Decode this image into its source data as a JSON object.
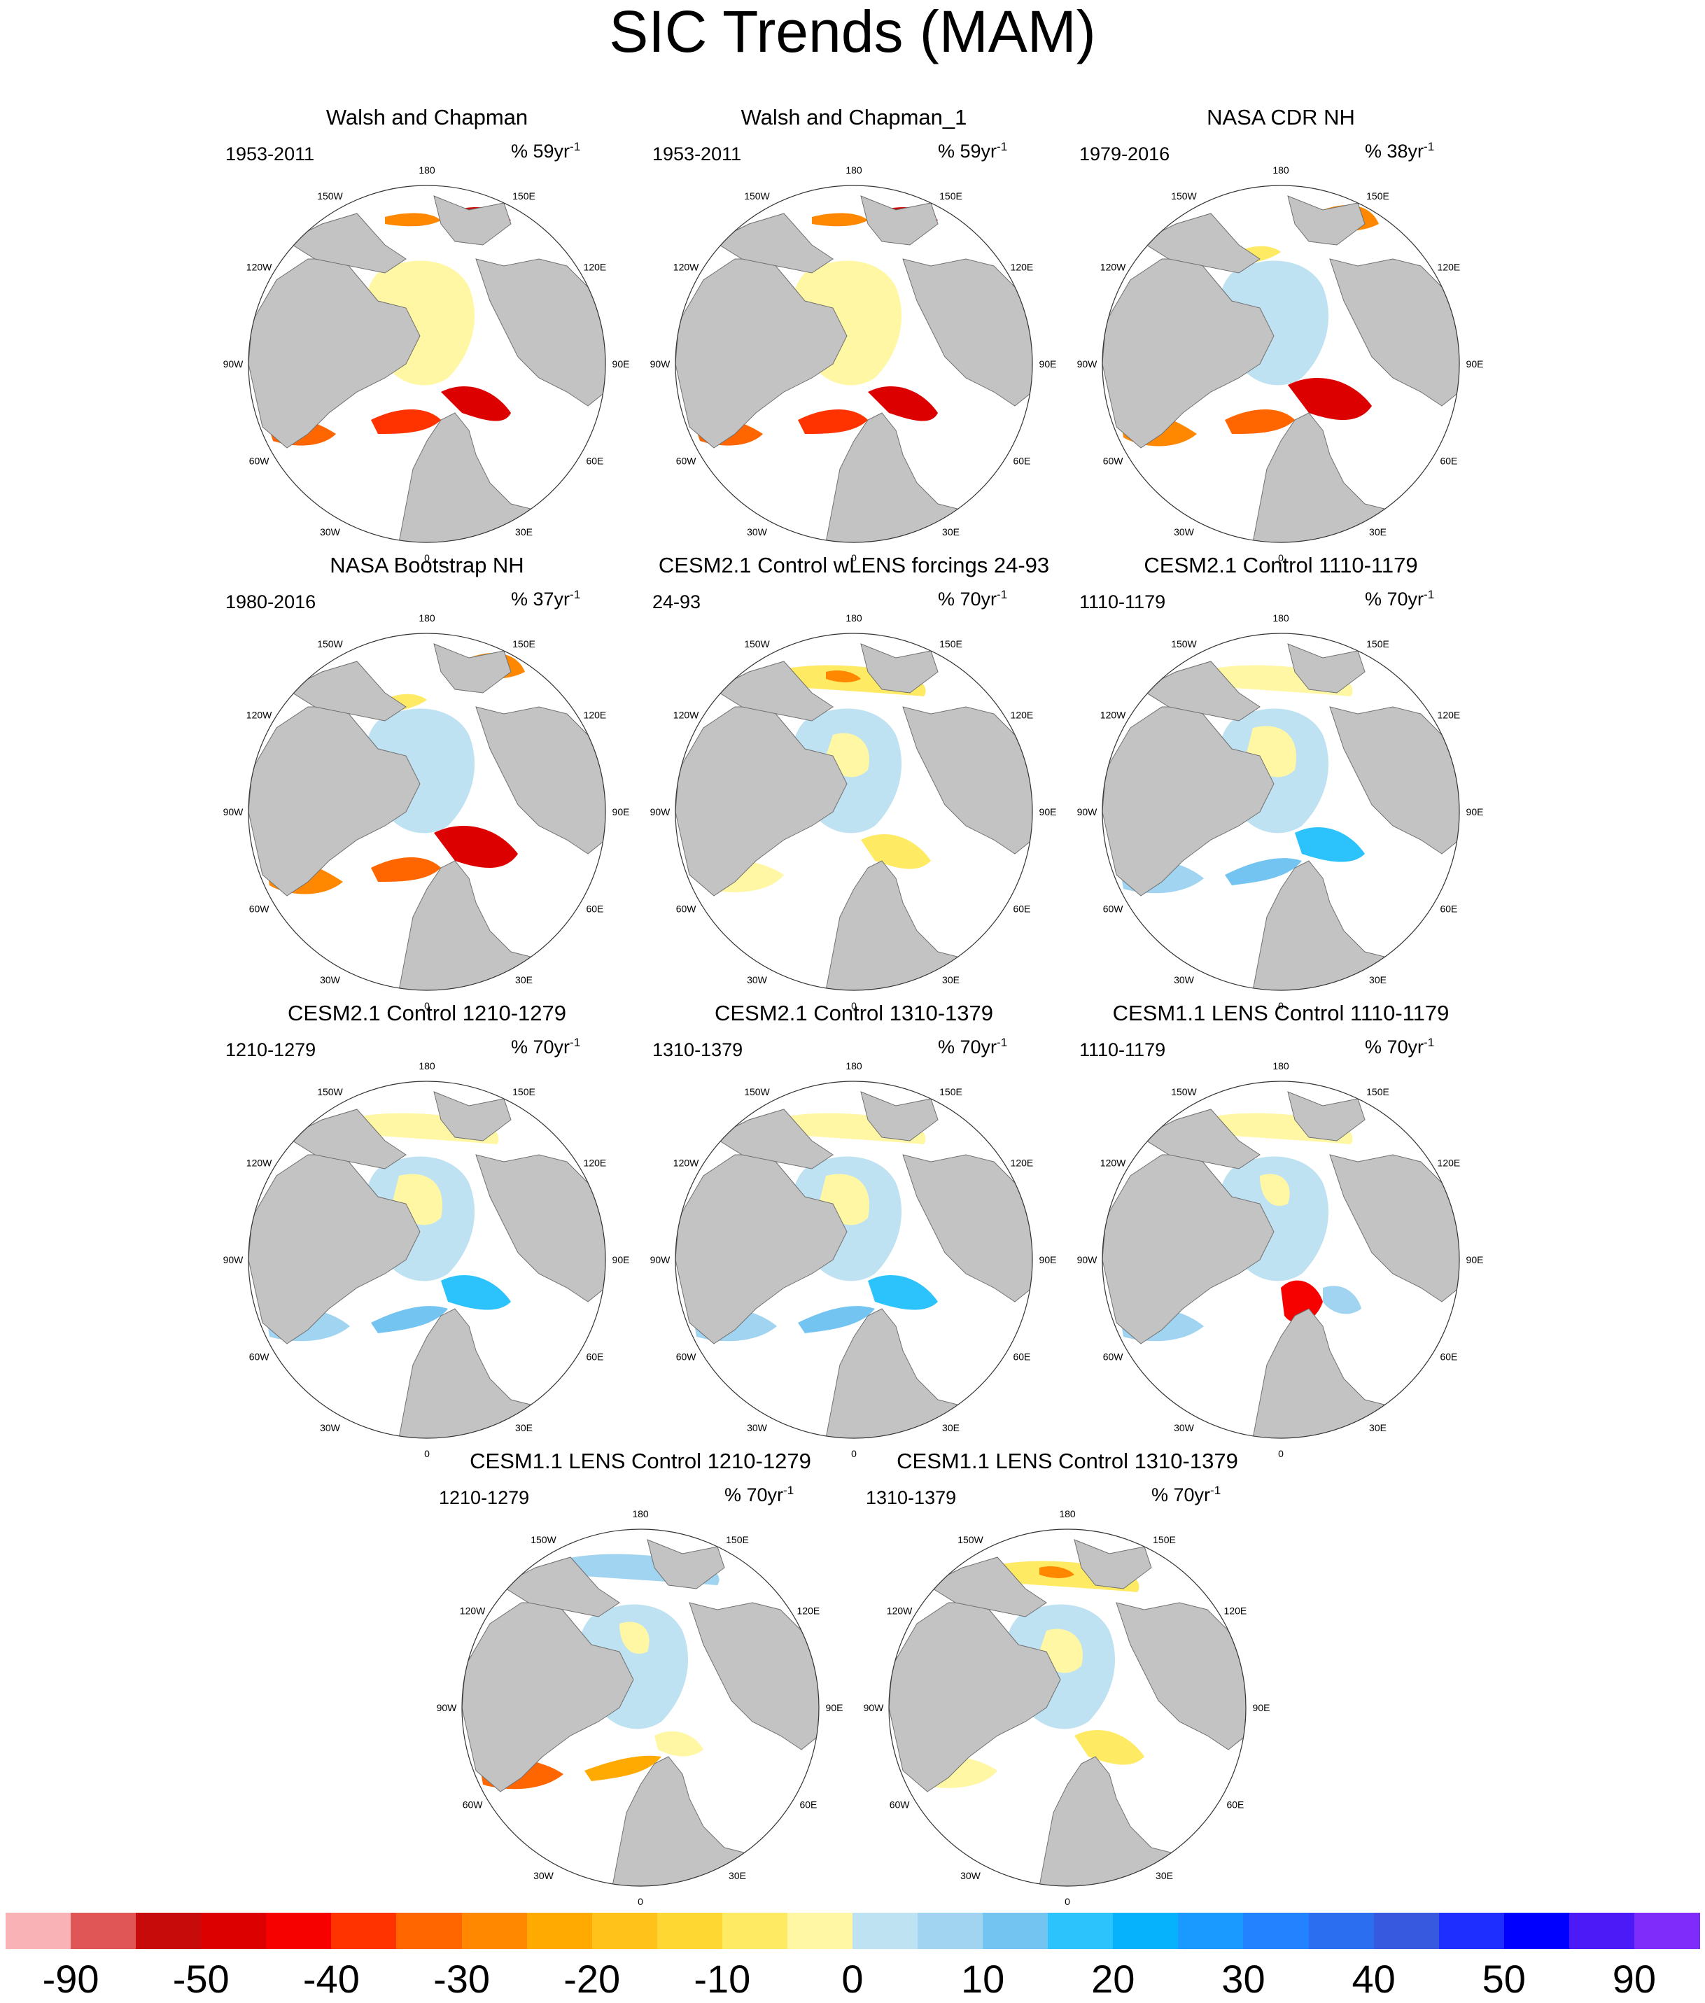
{
  "figure": {
    "title": "SIC Trends (MAM)"
  },
  "longitude_labels": [
    "180",
    "150W",
    "150E",
    "120W",
    "120E",
    "90W",
    "90E",
    "60W",
    "60E",
    "30W",
    "30E",
    "0"
  ],
  "panels": [
    {
      "title": "Walsh and Chapman",
      "period": "1953-2011",
      "units": "% 59yr",
      "units_exp": "-1",
      "pattern": "obs-wc"
    },
    {
      "title": "Walsh and Chapman_1",
      "period": "1953-2011",
      "units": "% 59yr",
      "units_exp": "-1",
      "pattern": "obs-wc"
    },
    {
      "title": "NASA CDR NH",
      "period": "1979-2016",
      "units": "% 38yr",
      "units_exp": "-1",
      "pattern": "obs-sat"
    },
    {
      "title": "NASA Bootstrap NH",
      "period": "1980-2016",
      "units": "% 37yr",
      "units_exp": "-1",
      "pattern": "obs-sat"
    },
    {
      "title": "CESM2.1 Control wLENS forcings 24-93",
      "period": "24-93",
      "units": "% 70yr",
      "units_exp": "-1",
      "pattern": "model-mixed"
    },
    {
      "title": "CESM2.1 Control 1110-1179",
      "period": "1110-1179",
      "units": "% 70yr",
      "units_exp": "-1",
      "pattern": "model-blue"
    },
    {
      "title": "CESM2.1 Control 1210-1279",
      "period": "1210-1279",
      "units": "% 70yr",
      "units_exp": "-1",
      "pattern": "model-blue"
    },
    {
      "title": "CESM2.1 Control 1310-1379",
      "period": "1310-1379",
      "units": "% 70yr",
      "units_exp": "-1",
      "pattern": "model-blue"
    },
    {
      "title": "CESM1.1 LENS Control 1110-1179",
      "period": "1110-1179",
      "units": "% 70yr",
      "units_exp": "-1",
      "pattern": "model-red-barents"
    },
    {
      "title": "CESM1.1 LENS Control 1210-1279",
      "period": "1210-1279",
      "units": "% 70yr",
      "units_exp": "-1",
      "pattern": "model-red-greenland"
    },
    {
      "title": "CESM1.1 LENS Control 1310-1379",
      "period": "1310-1379",
      "units": "% 70yr",
      "units_exp": "-1",
      "pattern": "model-mixed"
    }
  ],
  "colorbar": {
    "colors": [
      "#f9b3b6",
      "#e05555",
      "#c70a0a",
      "#dc0000",
      "#f70000",
      "#ff3300",
      "#ff6600",
      "#ff8800",
      "#ffaa00",
      "#ffc21a",
      "#ffd732",
      "#ffea64",
      "#fff7a3",
      "#bfe2f2",
      "#a0d4f0",
      "#73c4f1",
      "#2cc2fb",
      "#07b2fc",
      "#1a9aff",
      "#2382ff",
      "#2c6ef0",
      "#3659e0",
      "#1e2eff",
      "#0000ff",
      "#4c1af7",
      "#7f2bfa"
    ],
    "tick_labels": [
      "-90",
      "-50",
      "-40",
      "-30",
      "-20",
      "-10",
      "0",
      "10",
      "20",
      "30",
      "40",
      "50",
      "90"
    ]
  },
  "colors": {
    "land": "#c3c3c3",
    "ocean": "#ffffff",
    "coast": "#707070"
  }
}
